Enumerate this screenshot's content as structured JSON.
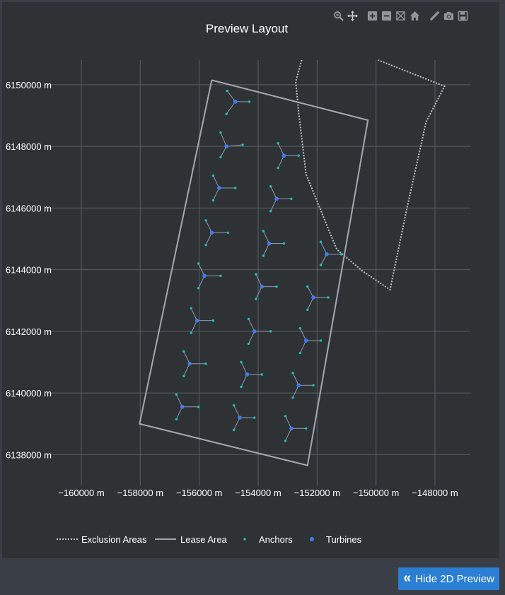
{
  "colors": {
    "panel_bg": "#2f3235",
    "page_bg": "#3a3f47",
    "grid": "#5a5e63",
    "text": "#ffffff",
    "lease": "#a3a7b3",
    "exclusion": "#bfc2c7",
    "anchor": "#19c3b3",
    "turbine": "#3f7bf0",
    "mooring": "#8e99b8",
    "button_bg": "#2a7fd4"
  },
  "modebar": {
    "icons": [
      "zoom-icon",
      "pan-icon",
      "zoom-in-icon",
      "zoom-out-icon",
      "autoscale-icon",
      "reset-axes-icon",
      "draw-line-icon",
      "camera-icon",
      "save-icon"
    ]
  },
  "button": {
    "label": "Hide 2D Preview"
  },
  "chart_data": {
    "type": "scatter",
    "title": "Preview Layout",
    "xlabel": "",
    "ylabel": "",
    "xlim": [
      -161200,
      -146800
    ],
    "ylim": [
      6137000,
      6150800
    ],
    "xticks": [
      -160000,
      -158000,
      -156000,
      -154000,
      -152000,
      -150000,
      -148000
    ],
    "xtick_labels": [
      "−160000 m",
      "−158000 m",
      "−156000 m",
      "−154000 m",
      "−152000 m",
      "−150000 m",
      "−148000 m"
    ],
    "yticks": [
      6138000,
      6140000,
      6142000,
      6144000,
      6146000,
      6148000,
      6150000
    ],
    "ytick_labels": [
      "6138000 m",
      "6140000 m",
      "6142000 m",
      "6144000 m",
      "6146000 m",
      "6148000 m",
      "6150000 m"
    ],
    "grid": true,
    "legend": {
      "placement": "bottom",
      "entries": [
        "Exclusion Areas",
        "Lease Area",
        "Anchors",
        "Turbines"
      ]
    },
    "lease_area": [
      [
        -155575,
        6150150
      ],
      [
        -150275,
        6148850
      ],
      [
        -152325,
        6137650
      ],
      [
        -158025,
        6139000
      ],
      [
        -155575,
        6150150
      ]
    ],
    "exclusion_area": [
      [
        -152525,
        6150800
      ],
      [
        -152725,
        6150100
      ],
      [
        -152625,
        6149100
      ],
      [
        -152375,
        6147100
      ],
      [
        -151525,
        6145100
      ],
      [
        -151325,
        6144650
      ],
      [
        -150450,
        6143950
      ],
      [
        -149525,
        6143350
      ],
      [
        -148950,
        6146000
      ],
      [
        -148300,
        6148800
      ],
      [
        -147675,
        6149950
      ],
      [
        -149925,
        6150800
      ]
    ],
    "turbines": [
      {
        "x": -154775,
        "y": 6149450
      },
      {
        "x": -155075,
        "y": 6148000
      },
      {
        "x": -153125,
        "y": 6147700
      },
      {
        "x": -155325,
        "y": 6146650
      },
      {
        "x": -153375,
        "y": 6146300
      },
      {
        "x": -155575,
        "y": 6145200
      },
      {
        "x": -153625,
        "y": 6144850
      },
      {
        "x": -151675,
        "y": 6144500
      },
      {
        "x": -155825,
        "y": 6143800
      },
      {
        "x": -153875,
        "y": 6143450
      },
      {
        "x": -152125,
        "y": 6143100
      },
      {
        "x": -156075,
        "y": 6142350
      },
      {
        "x": -154125,
        "y": 6142000
      },
      {
        "x": -152375,
        "y": 6141700
      },
      {
        "x": -156325,
        "y": 6140950
      },
      {
        "x": -154375,
        "y": 6140600
      },
      {
        "x": -152625,
        "y": 6140250
      },
      {
        "x": -156575,
        "y": 6139550
      },
      {
        "x": -154625,
        "y": 6139200
      },
      {
        "x": -152875,
        "y": 6138850
      }
    ],
    "anchors": [
      {
        "x": -155050,
        "y": 6149800
      },
      {
        "x": -154300,
        "y": 6149450
      },
      {
        "x": -155075,
        "y": 6149050
      },
      {
        "x": -155275,
        "y": 6148450
      },
      {
        "x": -154525,
        "y": 6148050
      },
      {
        "x": -155275,
        "y": 6147650
      },
      {
        "x": -153325,
        "y": 6148100
      },
      {
        "x": -152625,
        "y": 6147700
      },
      {
        "x": -153325,
        "y": 6147300
      },
      {
        "x": -155525,
        "y": 6147050
      },
      {
        "x": -154775,
        "y": 6146650
      },
      {
        "x": -155525,
        "y": 6146250
      },
      {
        "x": -153575,
        "y": 6146700
      },
      {
        "x": -152875,
        "y": 6146300
      },
      {
        "x": -153575,
        "y": 6145900
      },
      {
        "x": -155775,
        "y": 6145600
      },
      {
        "x": -155025,
        "y": 6145200
      },
      {
        "x": -155775,
        "y": 6144800
      },
      {
        "x": -153825,
        "y": 6145250
      },
      {
        "x": -153125,
        "y": 6144850
      },
      {
        "x": -153825,
        "y": 6144450
      },
      {
        "x": -151875,
        "y": 6144900
      },
      {
        "x": -151175,
        "y": 6144500
      },
      {
        "x": -151875,
        "y": 6144150
      },
      {
        "x": -156025,
        "y": 6144200
      },
      {
        "x": -155275,
        "y": 6143800
      },
      {
        "x": -156025,
        "y": 6143400
      },
      {
        "x": -154075,
        "y": 6143850
      },
      {
        "x": -153375,
        "y": 6143450
      },
      {
        "x": -154075,
        "y": 6143050
      },
      {
        "x": -152325,
        "y": 6143450
      },
      {
        "x": -151625,
        "y": 6143100
      },
      {
        "x": -152325,
        "y": 6142700
      },
      {
        "x": -156275,
        "y": 6142750
      },
      {
        "x": -155525,
        "y": 6142350
      },
      {
        "x": -156275,
        "y": 6141950
      },
      {
        "x": -154325,
        "y": 6142400
      },
      {
        "x": -153575,
        "y": 6142000
      },
      {
        "x": -154325,
        "y": 6141600
      },
      {
        "x": -152575,
        "y": 6142100
      },
      {
        "x": -151875,
        "y": 6141700
      },
      {
        "x": -152575,
        "y": 6141300
      },
      {
        "x": -156525,
        "y": 6141350
      },
      {
        "x": -155775,
        "y": 6140950
      },
      {
        "x": -156525,
        "y": 6140550
      },
      {
        "x": -154575,
        "y": 6141000
      },
      {
        "x": -153875,
        "y": 6140600
      },
      {
        "x": -154575,
        "y": 6140200
      },
      {
        "x": -152825,
        "y": 6140650
      },
      {
        "x": -152125,
        "y": 6140250
      },
      {
        "x": -152825,
        "y": 6139850
      },
      {
        "x": -156775,
        "y": 6139950
      },
      {
        "x": -156025,
        "y": 6139550
      },
      {
        "x": -156775,
        "y": 6139150
      },
      {
        "x": -154825,
        "y": 6139600
      },
      {
        "x": -154125,
        "y": 6139200
      },
      {
        "x": -154825,
        "y": 6138800
      },
      {
        "x": -153075,
        "y": 6139250
      },
      {
        "x": -152375,
        "y": 6138850
      },
      {
        "x": -153075,
        "y": 6138450
      }
    ]
  }
}
